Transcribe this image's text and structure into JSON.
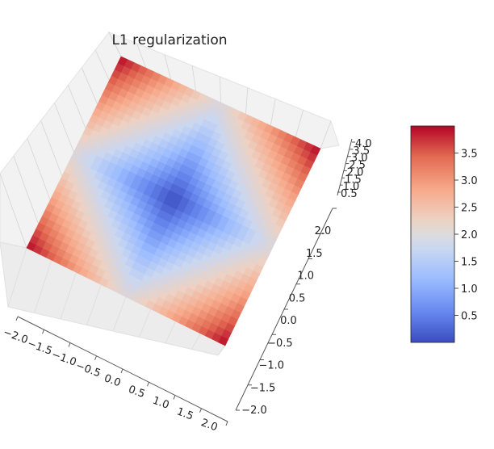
{
  "chart_data": {
    "type": "surface3d",
    "title": "L1 regularization",
    "function": "z = |x| + |y|",
    "x": {
      "range": [
        -2.0,
        2.0
      ],
      "ticks": [
        "−2.0",
        "−1.5",
        "−1.0",
        "−0.5",
        "0.0",
        "0.5",
        "1.0",
        "1.5",
        "2.0"
      ]
    },
    "y": {
      "range": [
        -2.0,
        2.0
      ],
      "ticks": [
        "−2.0",
        "−1.5",
        "−1.0",
        "−0.5",
        "0.0",
        "0.5",
        "1.0",
        "1.5",
        "2.0"
      ]
    },
    "z": {
      "range": [
        0.0,
        4.0
      ],
      "ticks": [
        "0.5",
        "1.0",
        "1.5",
        "2.0",
        "2.5",
        "3.0",
        "3.5",
        "4.0"
      ]
    },
    "grid": 30,
    "colormap": "coolwarm",
    "cmap_stops": [
      "#3b4cc0",
      "#6788ee",
      "#9abbff",
      "#c9d7f0",
      "#edd1c2",
      "#f7a889",
      "#e26952",
      "#b40426"
    ],
    "colorbar": {
      "range": [
        0.0,
        4.0
      ],
      "ticks": [
        "0.5",
        "1.0",
        "1.5",
        "2.0",
        "2.5",
        "3.0",
        "3.5"
      ]
    }
  }
}
